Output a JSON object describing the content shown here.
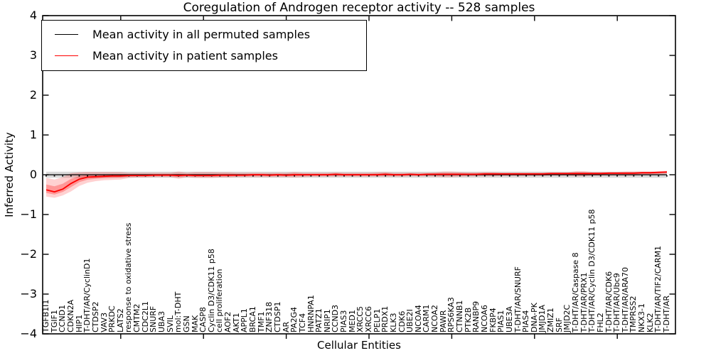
{
  "chart_data": {
    "type": "line",
    "title": "Coregulation of Androgen receptor activity -- 528 samples",
    "xlabel": "Cellular Entities",
    "ylabel": "Inferred Activity",
    "ylim": [
      -4,
      4
    ],
    "ytick_labels": [
      "4",
      "3",
      "2",
      "1",
      "0",
      "−1",
      "−2",
      "−3",
      "−4"
    ],
    "ytick_values": [
      4,
      3,
      2,
      1,
      0,
      -1,
      -2,
      -3,
      -4
    ],
    "x_major_tick_every": 10,
    "grid": false,
    "legend_position": "upper-left",
    "sample_count_in_title": "528",
    "categories": [
      "TGFB1I1",
      "TGIF1",
      "CCND1",
      "CDKN2A",
      "HIP1",
      "T-DHT/AR/CyclinD1",
      "CTDSP2",
      "VAV3",
      "PRKDC",
      "LATS2",
      "response to oxidative stress",
      "CMTM2",
      "CDC2L1",
      "SNURF",
      "UBA3",
      "SVIL",
      "mol:T-DHT",
      "GSN",
      "MAK",
      "CASP8",
      "Cyclin D3/CDK11 p58",
      "cell proliferation",
      "AOF2",
      "AKT1",
      "APPL1",
      "BRCA1",
      "TMF1",
      "ZNF318",
      "CTDSP1",
      "AR",
      "PA2G4",
      "TCF4",
      "HNRNPA1",
      "PATZ1",
      "NRIP1",
      "CCND3",
      "PIAS3",
      "MED1",
      "XRCC5",
      "XRCC6",
      "PELP1",
      "PRDX1",
      "KLK3",
      "CDK6",
      "UBE2I",
      "NCOA4",
      "CARM1",
      "NCOA2",
      "PAWR",
      "RPS6KA3",
      "CTNNB1",
      "PTK2B",
      "RANBP9",
      "NCOA6",
      "FKBP4",
      "PIAS1",
      "UBE3A",
      "T-DHT/AR/SNURF",
      "PIAS4",
      "DNA-PK",
      "JMJD1A",
      "ZMIZ1",
      "SRF",
      "JMJD2C",
      "T-DHT/AR/Caspase 8",
      "T-DHT/AR/PRX1",
      "T-DHT/AR/Cyclin D3/CDK11 p58",
      "FHL2",
      "T-DHT/AR/CDK6",
      "T-DHT/AR/Ubc9",
      "T-DHT/AR/ARA70",
      "TMPRSS2",
      "NKX3-1",
      "KLK2",
      "T-DHT/AR/TIF2/CARM1",
      "T-DHT/AR"
    ],
    "series": [
      {
        "name": "Mean activity in all permuted samples",
        "color": "#000000",
        "band_color": "rgba(0,0,0,0.15)",
        "band_halfwidth": 0.075,
        "values": [
          0,
          0,
          0,
          0,
          0,
          0,
          0,
          0,
          0,
          0,
          0,
          0,
          0,
          0,
          0,
          0,
          0,
          0,
          0,
          0,
          0,
          0,
          0,
          0,
          0,
          0,
          0,
          0,
          0,
          0,
          0,
          0,
          0,
          0,
          0,
          0,
          0,
          0,
          0,
          0,
          0,
          0,
          0,
          0,
          0,
          0,
          0,
          0,
          0,
          0,
          0,
          0,
          0,
          0,
          0,
          0,
          0,
          0,
          0,
          0,
          0,
          0,
          0,
          0,
          0,
          0,
          0,
          0,
          0,
          0,
          0,
          0,
          0,
          0,
          0,
          0
        ]
      },
      {
        "name": "Mean activity in patient samples",
        "color": "#ff0000",
        "band_color": "rgba(255,0,0,0.18)",
        "values": [
          -0.38,
          -0.43,
          -0.36,
          -0.22,
          -0.11,
          -0.06,
          -0.05,
          -0.04,
          -0.03,
          -0.03,
          -0.02,
          -0.02,
          -0.02,
          -0.01,
          -0.01,
          -0.01,
          -0.02,
          -0.01,
          -0.02,
          -0.02,
          -0.02,
          -0.01,
          -0.01,
          -0.01,
          -0.01,
          0,
          0,
          -0.01,
          0,
          -0.01,
          0,
          0,
          0,
          0,
          0,
          0.01,
          0,
          0,
          0,
          0,
          0,
          0.01,
          0,
          0,
          0.01,
          0,
          0.01,
          0.01,
          0.01,
          0.01,
          0.01,
          0.01,
          0.01,
          0.02,
          0.02,
          0.02,
          0.02,
          0.02,
          0.02,
          0.02,
          0.02,
          0.03,
          0.03,
          0.03,
          0.03,
          0.03,
          0.03,
          0.03,
          0.04,
          0.04,
          0.04,
          0.04,
          0.05,
          0.05,
          0.06,
          0.07
        ],
        "band_upper": [
          -0.08,
          -0.12,
          -0.06,
          0.04,
          0.06,
          0.07,
          0.07,
          0.07,
          0.07,
          0.07,
          0.05,
          0.05,
          0.05,
          0.05,
          0.05,
          0.05,
          0.08,
          0.05,
          0.07,
          0.07,
          0.07,
          0.06,
          0.06,
          0.05,
          0.05,
          0.05,
          0.05,
          0.05,
          0.05,
          0.05,
          0.07,
          0.05,
          0.05,
          0.05,
          0.05,
          0.06,
          0.05,
          0.05,
          0.05,
          0.05,
          0.06,
          0.07,
          0.05,
          0.05,
          0.05,
          0.05,
          0.05,
          0.06,
          0.08,
          0.08,
          0.07,
          0.06,
          0.06,
          0.07,
          0.07,
          0.06,
          0.06,
          0.06,
          0.06,
          0.06,
          0.06,
          0.06,
          0.06,
          0.06,
          0.09,
          0.09,
          0.07,
          0.07,
          0.07,
          0.07,
          0.08,
          0.08,
          0.08,
          0.08,
          0.09,
          0.1
        ],
        "band_lower": [
          -0.55,
          -0.58,
          -0.52,
          -0.42,
          -0.28,
          -0.2,
          -0.16,
          -0.14,
          -0.13,
          -0.12,
          -0.08,
          -0.07,
          -0.07,
          -0.06,
          -0.06,
          -0.06,
          -0.1,
          -0.06,
          -0.08,
          -0.08,
          -0.08,
          -0.07,
          -0.07,
          -0.06,
          -0.06,
          -0.06,
          -0.06,
          -0.06,
          -0.06,
          -0.06,
          -0.07,
          -0.06,
          -0.05,
          -0.05,
          -0.05,
          -0.05,
          -0.05,
          -0.05,
          -0.05,
          -0.05,
          -0.05,
          -0.05,
          -0.05,
          -0.05,
          -0.04,
          -0.04,
          -0.04,
          -0.05,
          -0.06,
          -0.06,
          -0.05,
          -0.04,
          -0.04,
          -0.04,
          -0.04,
          -0.03,
          -0.03,
          -0.03,
          -0.03,
          -0.03,
          -0.03,
          -0.02,
          -0.02,
          -0.02,
          -0.04,
          -0.04,
          -0.02,
          -0.02,
          -0.02,
          -0.02,
          -0.02,
          -0.02,
          -0.01,
          -0.01,
          0.0,
          0.02
        ]
      }
    ],
    "zero_reference_line": {
      "style": "dotted",
      "color": "#000000",
      "y": 0
    }
  }
}
